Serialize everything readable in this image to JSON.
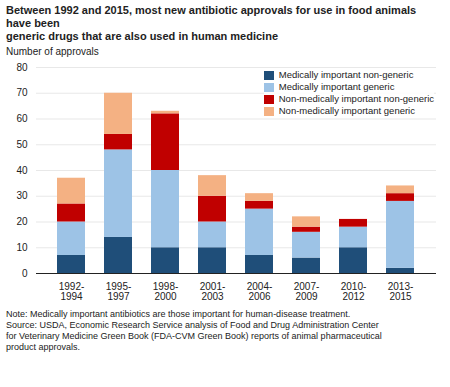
{
  "chart_data": {
    "type": "bar",
    "stacked": true,
    "title": "Between 1992 and 2015, most new antibiotic approvals for use in food animals have been\ngeneric drugs that are also used in human medicine",
    "ylabel": "Number of approvals",
    "note": "Note: Medically important antibiotics are those important for human-disease treatment.\nSource: USDA, Economic Research Service analysis of Food and Drug Administration Center\nfor Veterinary Medicine Green Book (FDA-CVM Green Book) reports of animal pharmaceutical\nproduct approvals.",
    "categories": [
      "1992-\n1994",
      "1995-\n1997",
      "1998-\n2000",
      "2001-\n2003",
      "2004-\n2006",
      "2007-\n2009",
      "2010-\n2012",
      "2013-\n2015"
    ],
    "series": [
      {
        "name": "Medically important non-generic",
        "color": "#1f4e79",
        "values": [
          7,
          14,
          10,
          10,
          7,
          6,
          10,
          2
        ]
      },
      {
        "name": "Medically important generic",
        "color": "#9dc3e6",
        "values": [
          13,
          34,
          30,
          10,
          18,
          10,
          8,
          26
        ]
      },
      {
        "name": "Non-medically important non-generic",
        "color": "#c00000",
        "values": [
          7,
          6,
          22,
          10,
          3,
          2,
          3,
          3
        ]
      },
      {
        "name": "Non-medically important generic",
        "color": "#f4b183",
        "values": [
          10,
          16,
          1,
          8,
          3,
          4,
          0,
          3
        ]
      }
    ],
    "ylim": [
      0,
      80
    ],
    "yticks": [
      0,
      10,
      20,
      30,
      40,
      50,
      60,
      70,
      80
    ],
    "grid": true,
    "legend": "upper right"
  }
}
